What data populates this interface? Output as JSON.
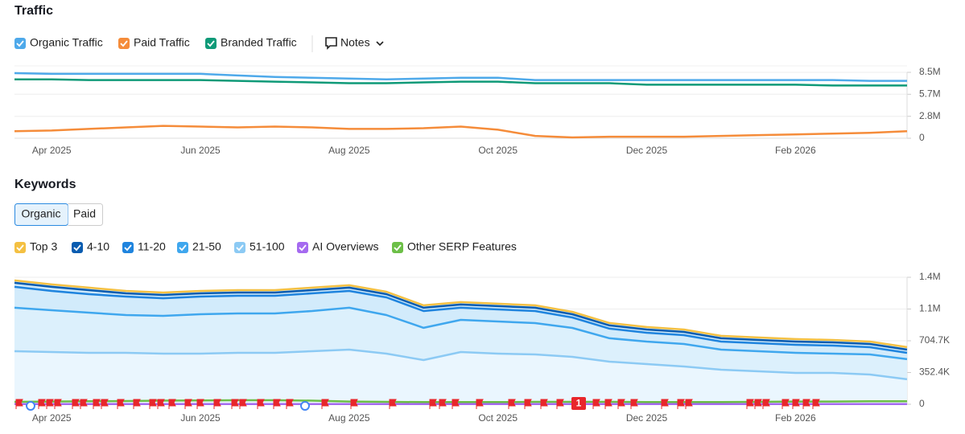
{
  "chart_data": [
    {
      "type": "line",
      "title": "Traffic",
      "categories": [
        null,
        "Apr 2025",
        null,
        null,
        null,
        "Jun 2025",
        null,
        null,
        null,
        "Aug 2025",
        null,
        null,
        null,
        "Oct 2025",
        null,
        null,
        null,
        "Dec 2025",
        null,
        null,
        null,
        "Feb 2026",
        null,
        null,
        null
      ],
      "series": [
        {
          "name": "Organic Traffic",
          "color": "#4ea9ea",
          "values": [
            8400000,
            8300000,
            8300000,
            8300000,
            8300000,
            8300000,
            8100000,
            7900000,
            7800000,
            7700000,
            7600000,
            7700000,
            7800000,
            7800000,
            7500000,
            7500000,
            7500000,
            7500000,
            7500000,
            7500000,
            7500000,
            7500000,
            7500000,
            7400000,
            7400000
          ]
        },
        {
          "name": "Paid Traffic",
          "color": "#f58c3a",
          "values": [
            900000,
            1000000,
            1200000,
            1400000,
            1600000,
            1500000,
            1400000,
            1500000,
            1400000,
            1200000,
            1200000,
            1300000,
            1500000,
            1100000,
            300000,
            100000,
            200000,
            200000,
            200000,
            300000,
            400000,
            500000,
            600000,
            700000,
            900000
          ]
        },
        {
          "name": "Branded Traffic",
          "color": "#0f9a78",
          "values": [
            7600000,
            7600000,
            7500000,
            7500000,
            7500000,
            7500000,
            7400000,
            7300000,
            7200000,
            7100000,
            7100000,
            7200000,
            7300000,
            7300000,
            7100000,
            7100000,
            7100000,
            6900000,
            6900000,
            6900000,
            6900000,
            6900000,
            6800000,
            6800000,
            6800000
          ]
        }
      ],
      "ylim": [
        0,
        8500000
      ],
      "yticks": [
        0,
        {
          "value": 2830000,
          "label": "2.8M"
        },
        {
          "value": 5670000,
          "label": "5.7M"
        },
        {
          "value": 8500000,
          "label": "8.5M"
        }
      ],
      "grid": true
    },
    {
      "type": "area",
      "title": "Keywords",
      "categories": [
        null,
        "Apr 2025",
        null,
        null,
        null,
        "Jun 2025",
        null,
        null,
        null,
        "Aug 2025",
        null,
        null,
        null,
        "Oct 2025",
        null,
        null,
        null,
        "Dec 2025",
        null,
        null,
        null,
        "Feb 2026",
        null,
        null,
        null
      ],
      "series": [
        {
          "name": "Top 3",
          "color": "#f4c042",
          "values": [
            27000,
            27000,
            27000,
            27000,
            27000,
            27000,
            27000,
            27000,
            27000,
            27000,
            27000,
            27000,
            27000,
            27000,
            27000,
            27000,
            27000,
            27000,
            27000,
            27000,
            27000,
            27000,
            27000,
            27000,
            27000
          ]
        },
        {
          "name": "4-10",
          "color": "#0a5cb0",
          "values": [
            45000,
            45000,
            45000,
            36000,
            36000,
            36000,
            36000,
            36000,
            36000,
            36000,
            36000,
            36000,
            36000,
            36000,
            36000,
            36000,
            36000,
            36000,
            36000,
            36000,
            36000,
            36000,
            36000,
            36000,
            36000
          ]
        },
        {
          "name": "11-20",
          "color": "#1f84de",
          "values": [
            232000,
            214000,
            205000,
            205000,
            196000,
            196000,
            196000,
            196000,
            196000,
            187000,
            196000,
            187000,
            134000,
            134000,
            134000,
            116000,
            107000,
            98000,
            98000,
            89000,
            89000,
            89000,
            89000,
            80000,
            71000
          ]
        },
        {
          "name": "21-50",
          "color": "#3fa7ee",
          "values": [
            482000,
            464000,
            446000,
            419000,
            419000,
            437000,
            437000,
            437000,
            446000,
            464000,
            428000,
            357000,
            357000,
            357000,
            348000,
            321000,
            259000,
            250000,
            250000,
            223000,
            223000,
            223000,
            214000,
            223000,
            223000
          ]
        },
        {
          "name": "51-100",
          "color": "#8ccaf4",
          "values": [
            589000,
            580000,
            571000,
            571000,
            562000,
            562000,
            571000,
            571000,
            589000,
            607000,
            562000,
            491000,
            580000,
            562000,
            553000,
            526000,
            473000,
            446000,
            419000,
            384000,
            366000,
            348000,
            348000,
            330000,
            277000
          ]
        },
        {
          "name": "AI Overviews",
          "color": "#a56af0",
          "type": "line",
          "values": [
            2000,
            2000,
            2000,
            2000,
            2000,
            2000,
            2000,
            2000,
            2000,
            2000,
            2000,
            2000,
            2000,
            2000,
            2000,
            2000,
            2000,
            2000,
            2000,
            2000,
            2000,
            2000,
            2000,
            2000,
            2000
          ]
        },
        {
          "name": "Other SERP Features",
          "color": "#6cbf47",
          "type": "line",
          "values": [
            27000,
            30000,
            33000,
            36000,
            40000,
            42000,
            45000,
            45000,
            40000,
            30000,
            27000,
            24000,
            24000,
            24000,
            27000,
            27000,
            27000,
            24000,
            24000,
            24000,
            27000,
            30000,
            30000,
            33000,
            33000
          ]
        }
      ],
      "ylim": [
        0,
        1409400
      ],
      "yticks": [
        0,
        {
          "value": 352400,
          "label": "352.4K"
        },
        {
          "value": 704700,
          "label": "704.7K"
        },
        {
          "value": 1057100,
          "label": "1.1M"
        },
        {
          "value": 1409400,
          "label": "1.4M"
        }
      ],
      "grid": true
    }
  ],
  "notes": "Notes",
  "tabs": [
    "Organic",
    "Paid"
  ],
  "note_marker": "1"
}
